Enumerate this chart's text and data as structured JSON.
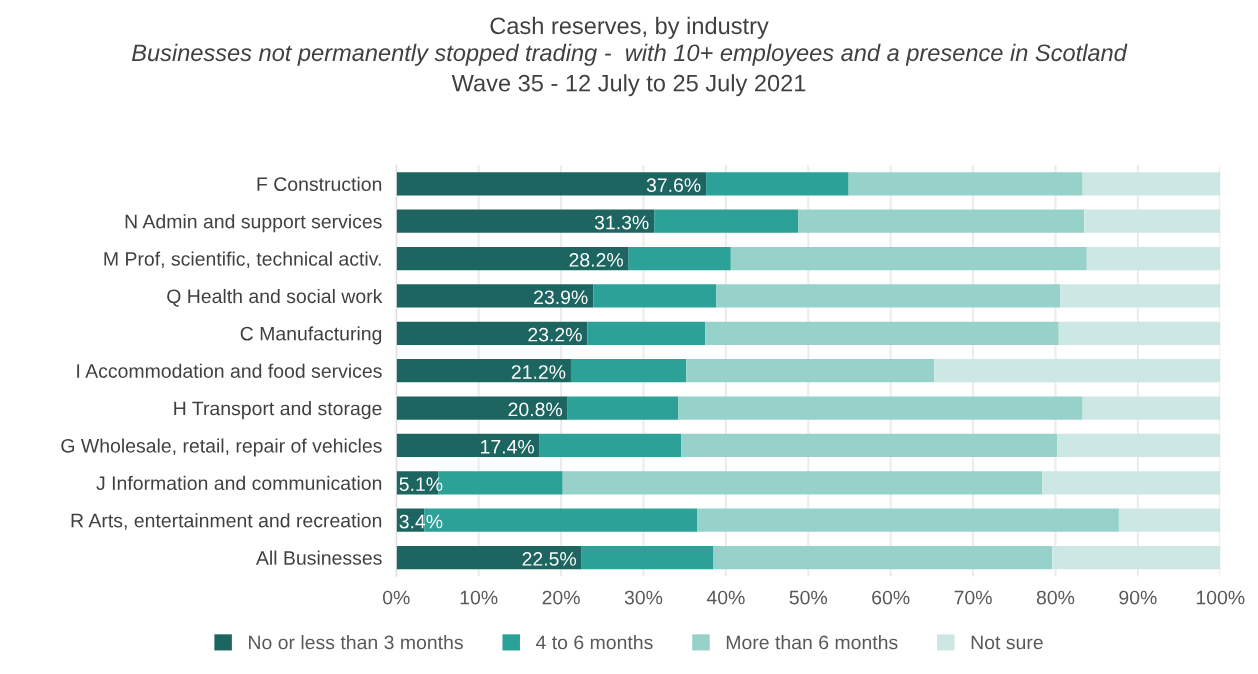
{
  "chart_data": {
    "type": "bar",
    "orientation": "horizontal",
    "stacked": true,
    "title": "Cash reserves, by industry",
    "subtitle": "Businesses not permanently stopped trading -  with 10+ employees and a presence in Scotland",
    "annotations": [
      "Wave 35 - 12 July to 25 July 2021"
    ],
    "categories": [
      "F Construction",
      "N Admin and support services",
      "M Prof, scientific, technical activ.",
      "Q Health and social work",
      "C Manufacturing",
      "I Accommodation and food services",
      "H Transport and storage",
      "G Wholesale, retail, repair of vehicles",
      "J Information and communication",
      "R Arts, entertainment and recreation",
      "All Businesses"
    ],
    "series": [
      {
        "name": "No or less than 3 months",
        "color": "#1d6560",
        "values": [
          37.6,
          31.3,
          28.2,
          23.9,
          23.2,
          21.2,
          20.8,
          17.4,
          5.1,
          3.4,
          22.5
        ],
        "value_labels": [
          "37.6%",
          "31.3%",
          "28.2%",
          "23.9%",
          "23.2%",
          "21.2%",
          "20.8%",
          "17.4%",
          "5.1%",
          "3.4%",
          "22.5%"
        ]
      },
      {
        "name": "4 to 6 months",
        "color": "#2ca198",
        "values": [
          17.3,
          17.5,
          12.4,
          14.9,
          14.3,
          14.0,
          13.4,
          17.2,
          15.1,
          33.1,
          16.0
        ]
      },
      {
        "name": "More than 6 months",
        "color": "#96d1ca",
        "values": [
          28.4,
          34.7,
          43.2,
          41.8,
          42.9,
          30.1,
          49.1,
          45.6,
          58.2,
          51.2,
          41.1
        ]
      },
      {
        "name": "Not sure",
        "color": "#cde8e4",
        "values": [
          16.7,
          16.5,
          16.2,
          19.4,
          19.6,
          34.7,
          16.7,
          19.8,
          21.6,
          12.3,
          20.4
        ]
      }
    ],
    "xlim": [
      0,
      100
    ],
    "xticks": [
      {
        "value": 0,
        "label": "0%"
      },
      {
        "value": 10,
        "label": "10%"
      },
      {
        "value": 20,
        "label": "20%"
      },
      {
        "value": 30,
        "label": "30%"
      },
      {
        "value": 40,
        "label": "40%"
      },
      {
        "value": 50,
        "label": "50%"
      },
      {
        "value": 60,
        "label": "60%"
      },
      {
        "value": 70,
        "label": "70%"
      },
      {
        "value": 80,
        "label": "80%"
      },
      {
        "value": 90,
        "label": "90%"
      },
      {
        "value": 100,
        "label": "100%"
      }
    ],
    "grid": "x",
    "legend": "bottom"
  }
}
